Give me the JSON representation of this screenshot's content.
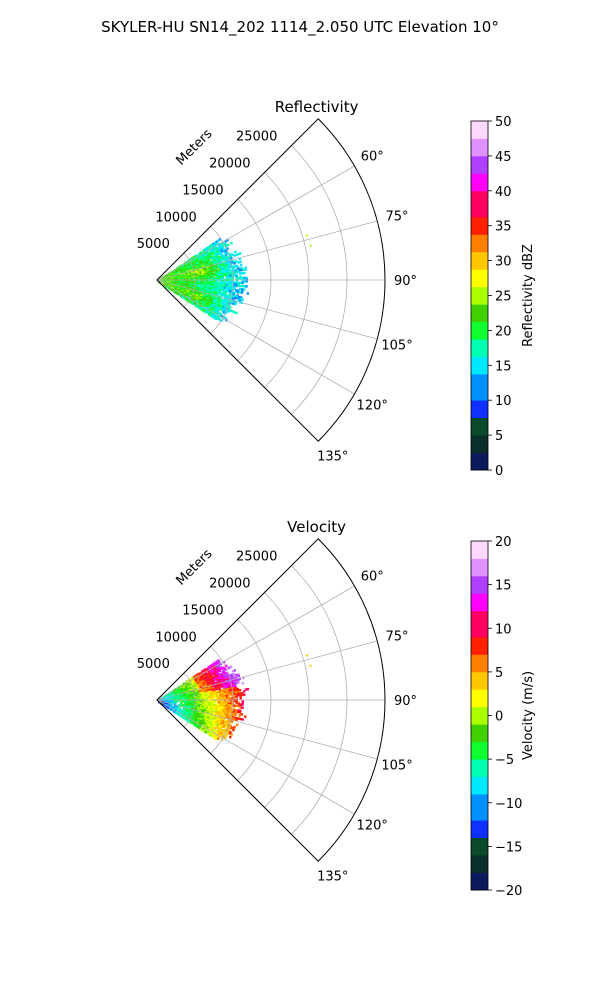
{
  "suptitle": "SKYLER-HU  SN14_202  1114_2.050 UTC Elevation 10°",
  "chart_data": [
    {
      "type": "polar-sector",
      "title": "Reflectivity",
      "range_label": "Meters",
      "range_ticks": [
        5000,
        10000,
        15000,
        20000,
        25000
      ],
      "range_tick_labels": [
        "5000",
        "10000",
        "15000",
        "20000",
        "25000"
      ],
      "rmax": 30000,
      "azimuth_range_deg": [
        45,
        135
      ],
      "azimuth_ticks_deg": [
        60,
        75,
        90,
        105,
        120,
        135
      ],
      "azimuth_tick_labels": [
        "60°",
        "75°",
        "90°",
        "105°",
        "120°",
        "135°"
      ],
      "grid": true,
      "colorbar": {
        "label": "Reflectivity dBZ",
        "range": [
          0,
          50
        ],
        "ticks": [
          0,
          5,
          10,
          15,
          20,
          25,
          30,
          35,
          40,
          45,
          50
        ],
        "tick_labels": [
          "0",
          "5",
          "10",
          "15",
          "20",
          "25",
          "30",
          "35",
          "40",
          "45",
          "50"
        ],
        "colormap": [
          "#0a1a5c",
          "#0a2f2a",
          "#0b4a2a",
          "#1030ff",
          "#0090ff",
          "#00e8ff",
          "#00ffb0",
          "#10ff30",
          "#40d000",
          "#aaff00",
          "#ffff00",
          "#ffc800",
          "#ff8000",
          "#ff2000",
          "#ff0060",
          "#ff00ff",
          "#b040ff",
          "#e090ff",
          "#ffd8ff"
        ]
      },
      "echo_summary": "Echo confined to azimuths ~55–125° within ~12000 m; higher values (~20–27 dBZ) near the origin and in a band near 75–90° azimuth; outer edge ~10–15 dBZ"
    },
    {
      "type": "polar-sector",
      "title": "Velocity",
      "range_label": "Meters",
      "range_ticks": [
        5000,
        10000,
        15000,
        20000,
        25000
      ],
      "range_tick_labels": [
        "5000",
        "10000",
        "15000",
        "20000",
        "25000"
      ],
      "rmax": 30000,
      "azimuth_range_deg": [
        45,
        135
      ],
      "azimuth_ticks_deg": [
        60,
        75,
        90,
        105,
        120,
        135
      ],
      "azimuth_tick_labels": [
        "60°",
        "75°",
        "90°",
        "105°",
        "120°",
        "135°"
      ],
      "grid": true,
      "colorbar": {
        "label": "Velocity (m/s)",
        "range": [
          -20,
          20
        ],
        "ticks": [
          -20,
          -15,
          -10,
          -5,
          0,
          5,
          10,
          15,
          20
        ],
        "tick_labels": [
          "−20",
          "−15",
          "−10",
          "−5",
          "0",
          "5",
          "10",
          "15",
          "20"
        ],
        "colormap": [
          "#0a1a5c",
          "#0a2f2a",
          "#0b4a2a",
          "#1030ff",
          "#0090ff",
          "#00e8ff",
          "#00ffb0",
          "#10ff30",
          "#40d000",
          "#aaff00",
          "#ffff00",
          "#ffc800",
          "#ff8000",
          "#ff2000",
          "#ff0060",
          "#ff00ff",
          "#b040ff",
          "#e090ff",
          "#ffd8ff"
        ]
      },
      "echo_summary": "Echo confined to azimuths ~55–125° within ~12000 m; about −10 m/s near the origin, rising to ~0–5 m/s at mid range and ~10–15 m/s at ~60–80° azimuth"
    }
  ]
}
